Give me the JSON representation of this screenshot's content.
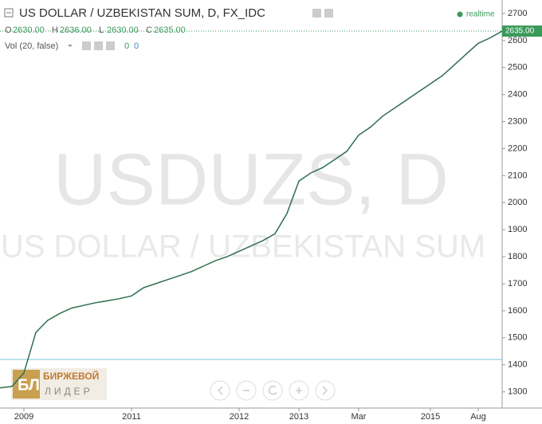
{
  "chart_data": {
    "type": "line",
    "title": "US DOLLAR / UZBEKISTAN SUM, D, FX_IDC",
    "categories": [
      null,
      null,
      "2009",
      null,
      null,
      null,
      null,
      null,
      null,
      null,
      null,
      "2011",
      null,
      null,
      null,
      null,
      null,
      null,
      null,
      null,
      "2012",
      null,
      null,
      null,
      null,
      "2013",
      null,
      null,
      null,
      null,
      "Mar",
      null,
      null,
      null,
      null,
      null,
      "2015",
      null,
      null,
      null,
      "Aug",
      null,
      null
    ],
    "series": [
      {
        "name": "USDUZS",
        "color": "#2f6e4e",
        "values": [
          1315,
          1320,
          1370,
          1520,
          1565,
          1590,
          1610,
          1620,
          1630,
          1637,
          1645,
          1655,
          1685,
          1700,
          1715,
          1730,
          1745,
          1765,
          1785,
          1800,
          1820,
          1840,
          1860,
          1885,
          1960,
          2080,
          2110,
          2130,
          2160,
          2190,
          2250,
          2280,
          2320,
          2350,
          2380,
          2410,
          2440,
          2470,
          2510,
          2550,
          2590,
          2610,
          2635
        ]
      }
    ],
    "ylim": [
      1240,
      2750
    ],
    "yticks": [
      1300,
      1400,
      1500,
      1600,
      1700,
      1800,
      1900,
      2000,
      2100,
      2200,
      2300,
      2400,
      2500,
      2600,
      2700
    ],
    "last_price": {
      "value": 2635,
      "label": "2635.00"
    },
    "grid": false
  },
  "header": {
    "ohlc": [
      "O",
      "2630.00",
      "H",
      "2636.00",
      "L",
      "2630.00",
      "C",
      "2635.00"
    ],
    "volume": "Vol (20, false)",
    "volume_values": [
      "0",
      "0"
    ],
    "realtime": "realtime"
  },
  "watermark": {
    "symbol": "USDUZS, D",
    "description": "US DOLLAR / UZBEKISTAN SUM"
  },
  "logo": {
    "line1": "БИРЖЕВОЙ",
    "line2": "ЛИДЕР"
  }
}
